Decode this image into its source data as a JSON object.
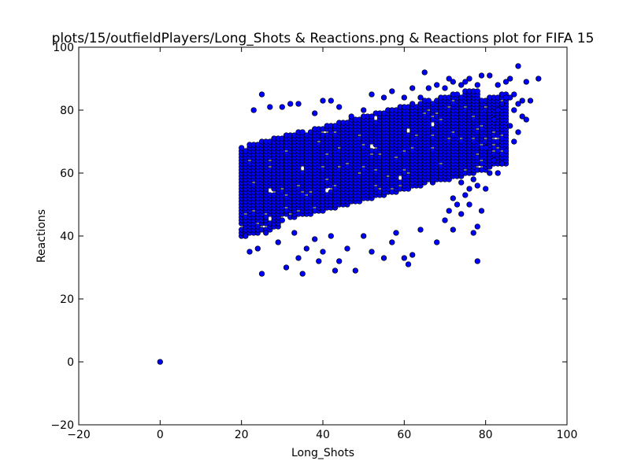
{
  "chart_data": {
    "type": "scatter",
    "title": "plots/15/outfieldPlayers/Long_Shots & Reactions.png & Reactions plot for FIFA 15",
    "xlabel": "Long_Shots",
    "ylabel": "Reactions",
    "xlim": [
      -20,
      100
    ],
    "ylim": [
      -20,
      100
    ],
    "xticks": [
      -20,
      0,
      20,
      40,
      60,
      80,
      100
    ],
    "yticks": [
      -20,
      0,
      20,
      40,
      60,
      80,
      100
    ],
    "grid": false,
    "marker_color": "#0000ff",
    "marker_edge": "#000000",
    "dense_region": {
      "x_range": [
        20,
        85
      ],
      "y_center_at_x20": 55,
      "y_center_at_x85": 76,
      "y_spread": 13
    },
    "points": [
      [
        0,
        0
      ],
      [
        25,
        28
      ],
      [
        35,
        28
      ],
      [
        31,
        30
      ],
      [
        43,
        29
      ],
      [
        48,
        29
      ],
      [
        61,
        31
      ],
      [
        78,
        32
      ],
      [
        22,
        35
      ],
      [
        34,
        33
      ],
      [
        39,
        32
      ],
      [
        44,
        32
      ],
      [
        55,
        33
      ],
      [
        60,
        33
      ],
      [
        62,
        34
      ],
      [
        24,
        36
      ],
      [
        29,
        38
      ],
      [
        36,
        36
      ],
      [
        40,
        35
      ],
      [
        46,
        36
      ],
      [
        52,
        35
      ],
      [
        57,
        38
      ],
      [
        68,
        38
      ],
      [
        21,
        40
      ],
      [
        26,
        41
      ],
      [
        33,
        41
      ],
      [
        38,
        39
      ],
      [
        42,
        40
      ],
      [
        50,
        40
      ],
      [
        58,
        41
      ],
      [
        64,
        42
      ],
      [
        72,
        42
      ],
      [
        77,
        41
      ],
      [
        78,
        43
      ],
      [
        70,
        45
      ],
      [
        74,
        47
      ],
      [
        25,
        85
      ],
      [
        23,
        80
      ],
      [
        27,
        81
      ],
      [
        30,
        81
      ],
      [
        32,
        82
      ],
      [
        34,
        82
      ],
      [
        38,
        79
      ],
      [
        40,
        83
      ],
      [
        42,
        83
      ],
      [
        44,
        81
      ],
      [
        47,
        78
      ],
      [
        50,
        80
      ],
      [
        52,
        85
      ],
      [
        55,
        84
      ],
      [
        57,
        86
      ],
      [
        60,
        84
      ],
      [
        62,
        87
      ],
      [
        64,
        84
      ],
      [
        65,
        92
      ],
      [
        66,
        87
      ],
      [
        68,
        88
      ],
      [
        70,
        87
      ],
      [
        71,
        90
      ],
      [
        72,
        89
      ],
      [
        74,
        88
      ],
      [
        75,
        89
      ],
      [
        76,
        90
      ],
      [
        78,
        88
      ],
      [
        79,
        91
      ],
      [
        81,
        91
      ],
      [
        83,
        88
      ],
      [
        85,
        89
      ],
      [
        86,
        90
      ],
      [
        88,
        94
      ],
      [
        90,
        89
      ],
      [
        93,
        90
      ],
      [
        87,
        85
      ],
      [
        89,
        83
      ],
      [
        91,
        83
      ],
      [
        86,
        84
      ],
      [
        88,
        82
      ],
      [
        87,
        80
      ],
      [
        89,
        78
      ],
      [
        90,
        77
      ],
      [
        86,
        75
      ],
      [
        88,
        73
      ],
      [
        87,
        70
      ],
      [
        85,
        67
      ],
      [
        84,
        63
      ],
      [
        80,
        68
      ],
      [
        81,
        60
      ],
      [
        80,
        55
      ],
      [
        78,
        56
      ],
      [
        77,
        58
      ],
      [
        76,
        55
      ],
      [
        74,
        57
      ],
      [
        75,
        53
      ],
      [
        72,
        52
      ],
      [
        73,
        50
      ],
      [
        76,
        50
      ],
      [
        71,
        48
      ],
      [
        79,
        48
      ],
      [
        83,
        60
      ],
      [
        82,
        64
      ],
      [
        82,
        77
      ],
      [
        83,
        80
      ],
      [
        84,
        82
      ],
      [
        85,
        84
      ]
    ]
  }
}
